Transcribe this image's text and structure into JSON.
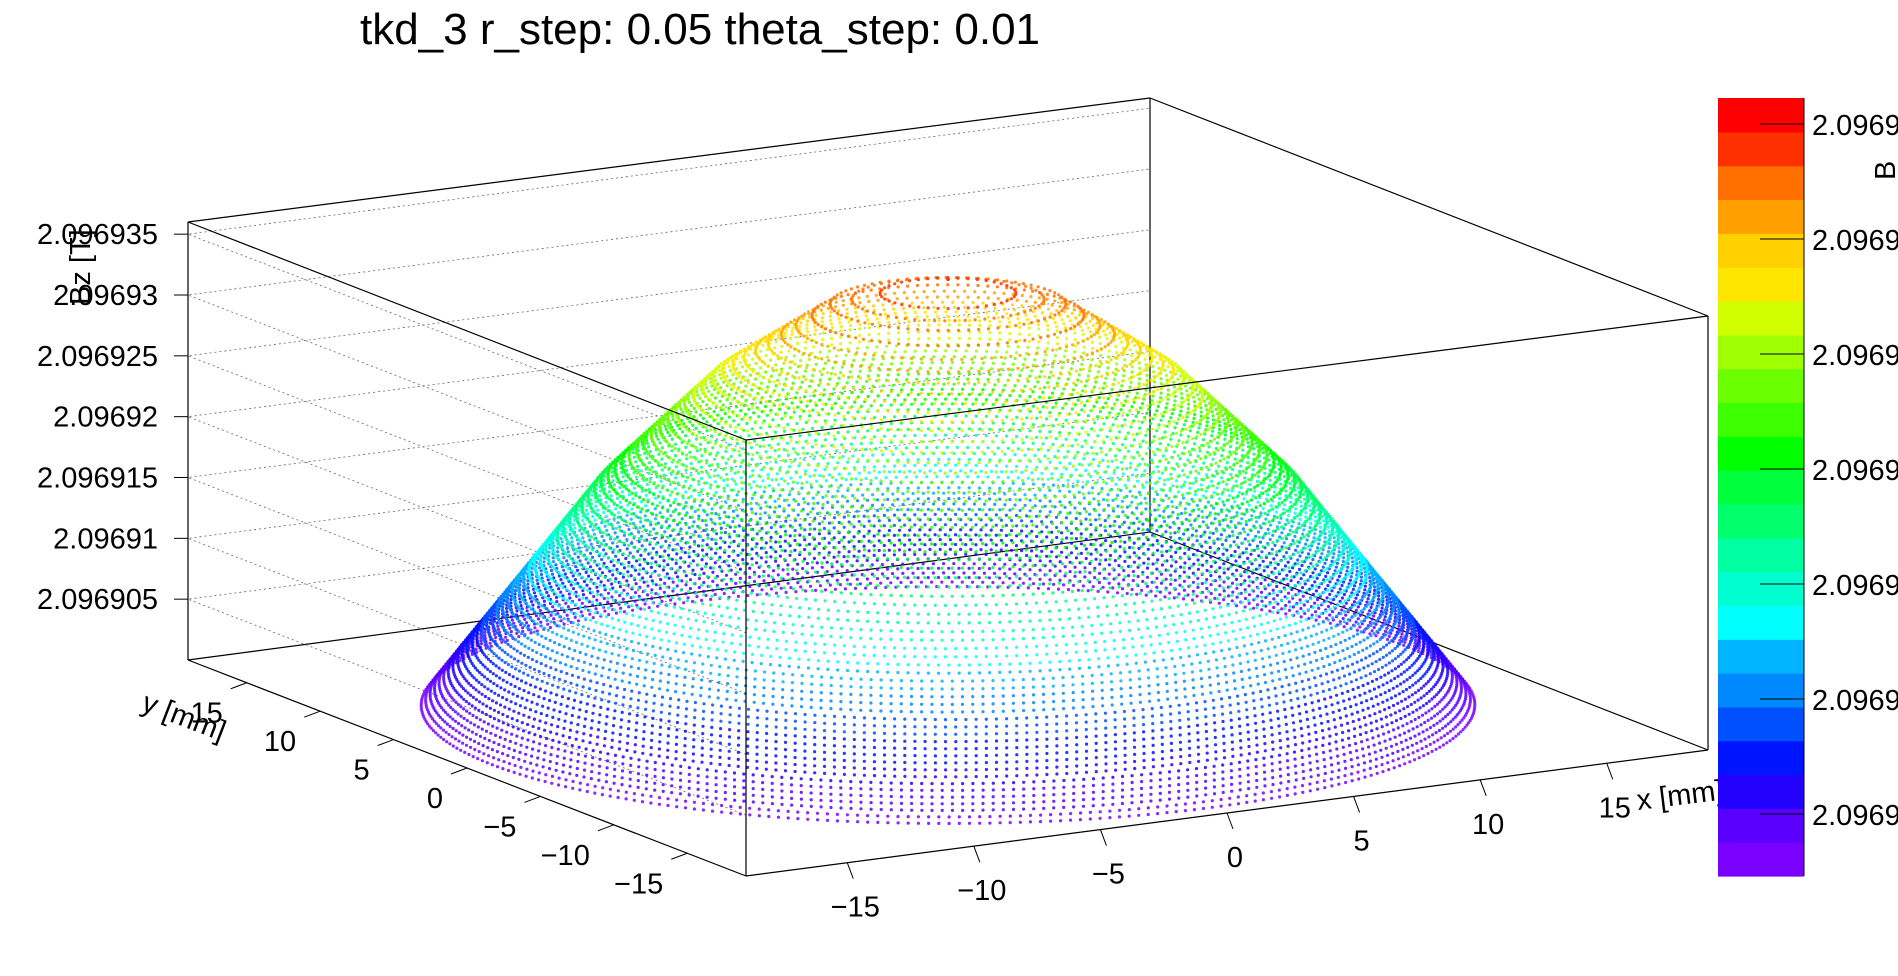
{
  "chart_data": {
    "type": "scatter",
    "subtype": "3d-point-surface",
    "title": "tkd_3 r_step: 0.05 theta_step: 0.01",
    "xlabel": "x [mm]",
    "ylabel": "y [mm]",
    "zlabel": "Bz [T]",
    "x_range": [
      -19,
      19
    ],
    "y_range": [
      -19,
      19
    ],
    "z_range": [
      2.0969,
      2.096936
    ],
    "x_ticks": [
      {
        "v": -15,
        "label": "−15"
      },
      {
        "v": -10,
        "label": "−10"
      },
      {
        "v": -5,
        "label": "−5"
      },
      {
        "v": 0,
        "label": "0"
      },
      {
        "v": 5,
        "label": "5"
      },
      {
        "v": 10,
        "label": "10"
      },
      {
        "v": 15,
        "label": "15"
      }
    ],
    "y_ticks": [
      {
        "v": -15,
        "label": "−15"
      },
      {
        "v": -10,
        "label": "−10"
      },
      {
        "v": -5,
        "label": "−5"
      },
      {
        "v": 0,
        "label": "0"
      },
      {
        "v": 5,
        "label": "5"
      },
      {
        "v": 10,
        "label": "10"
      },
      {
        "v": 15,
        "label": "15"
      }
    ],
    "z_ticks": [
      {
        "v": 2.096905,
        "label": "2.096905"
      },
      {
        "v": 2.09691,
        "label": "2.09691"
      },
      {
        "v": 2.096915,
        "label": "2.096915"
      },
      {
        "v": 2.09692,
        "label": "2.09692"
      },
      {
        "v": 2.096925,
        "label": "2.096925"
      },
      {
        "v": 2.09693,
        "label": "2.09693"
      },
      {
        "v": 2.096935,
        "label": "2.096935"
      }
    ],
    "surface": {
      "domain": "disk",
      "r_max": 18,
      "r_step": 0.05,
      "theta_step": 0.01,
      "center_value": 2.096935,
      "edge_value": 2.0969,
      "profile": [
        {
          "r": 0,
          "z": 2.096935
        },
        {
          "r": 4,
          "z": 2.096933
        },
        {
          "r": 8,
          "z": 2.096927
        },
        {
          "r": 12,
          "z": 2.096918
        },
        {
          "r": 15,
          "z": 2.096909
        },
        {
          "r": 17,
          "z": 2.096903
        },
        {
          "r": 18,
          "z": 2.0969
        }
      ]
    },
    "colorbar": {
      "labels": [
        "2.0969",
        "2.0969",
        "2.0969",
        "2.0969",
        "2.0969",
        "2.0969",
        "2.0969"
      ],
      "colors": [
        "#7a00ff",
        "#5a00ff",
        "#2400ff",
        "#0014ff",
        "#0050ff",
        "#0088ff",
        "#00b4ff",
        "#00ffff",
        "#00ffd0",
        "#00ffa0",
        "#00ff6a",
        "#00ff3c",
        "#00ff00",
        "#3cff00",
        "#6cff00",
        "#a0ff00",
        "#d2ff00",
        "#ffe600",
        "#ffd000",
        "#ffa000",
        "#ff7000",
        "#ff3000",
        "#ff0000"
      ],
      "unit_fragment": "B"
    },
    "grid": true,
    "legend": "colorbar right"
  }
}
